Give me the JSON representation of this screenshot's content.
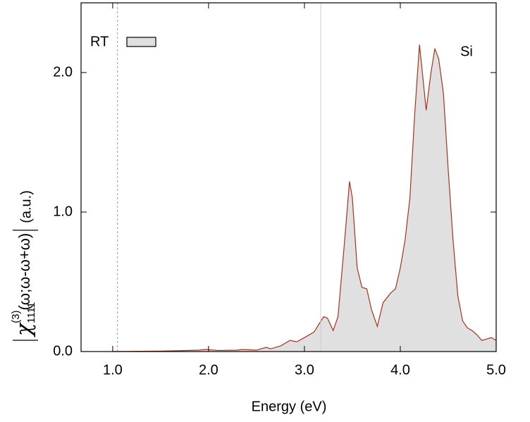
{
  "chart_data": {
    "type": "area",
    "xlabel": "Energy (eV)",
    "ylabel": {
      "symbol": "χ",
      "sub": "1111",
      "sup": "(3)",
      "args": "(ω;ω-ω+ω)",
      "units": "(a.u.)"
    },
    "annotation": "Si",
    "legend": "top-left",
    "grid": false,
    "xlim": [
      0.67,
      5.0
    ],
    "ylim": [
      0,
      2.5
    ],
    "xticks": [
      {
        "value": 1,
        "label": "1.0"
      },
      {
        "value": 2,
        "label": "2.0"
      },
      {
        "value": 3,
        "label": "3.0"
      },
      {
        "value": 4,
        "label": "4.0"
      },
      {
        "value": 5,
        "label": "5.0"
      }
    ],
    "yticks": [
      {
        "value": 0,
        "label": "0.0"
      },
      {
        "value": 1,
        "label": "1.0"
      },
      {
        "value": 2,
        "label": "2.0"
      }
    ],
    "vlines": [
      {
        "x": 1.05,
        "style": "dashed",
        "color": "#999999"
      },
      {
        "x": 3.17,
        "style": "solid",
        "color": "#cccccc"
      }
    ],
    "series": [
      {
        "name": "RT",
        "color": "#a8321e",
        "fill": "#e0e0e0",
        "x": [
          1.0,
          1.5,
          1.9,
          1.97,
          2.1,
          2.3,
          2.35,
          2.5,
          2.6,
          2.65,
          2.75,
          2.85,
          2.92,
          3.0,
          3.1,
          3.2,
          3.24,
          3.3,
          3.35,
          3.42,
          3.47,
          3.5,
          3.55,
          3.6,
          3.65,
          3.7,
          3.76,
          3.82,
          3.9,
          3.95,
          4.0,
          4.05,
          4.1,
          4.15,
          4.2,
          4.23,
          4.27,
          4.32,
          4.36,
          4.4,
          4.45,
          4.5,
          4.55,
          4.6,
          4.65,
          4.7,
          4.75,
          4.8,
          4.85,
          4.9,
          4.95,
          5.0
        ],
        "values": [
          0.0,
          0.003,
          0.01,
          0.015,
          0.008,
          0.01,
          0.015,
          0.01,
          0.03,
          0.02,
          0.04,
          0.08,
          0.07,
          0.1,
          0.14,
          0.25,
          0.24,
          0.15,
          0.25,
          0.8,
          1.22,
          1.1,
          0.6,
          0.46,
          0.45,
          0.3,
          0.18,
          0.35,
          0.42,
          0.45,
          0.6,
          0.8,
          1.1,
          1.7,
          2.2,
          2.0,
          1.73,
          2.0,
          2.17,
          2.1,
          1.85,
          1.3,
          0.8,
          0.4,
          0.22,
          0.17,
          0.15,
          0.12,
          0.08,
          0.09,
          0.1,
          0.08
        ]
      }
    ]
  }
}
